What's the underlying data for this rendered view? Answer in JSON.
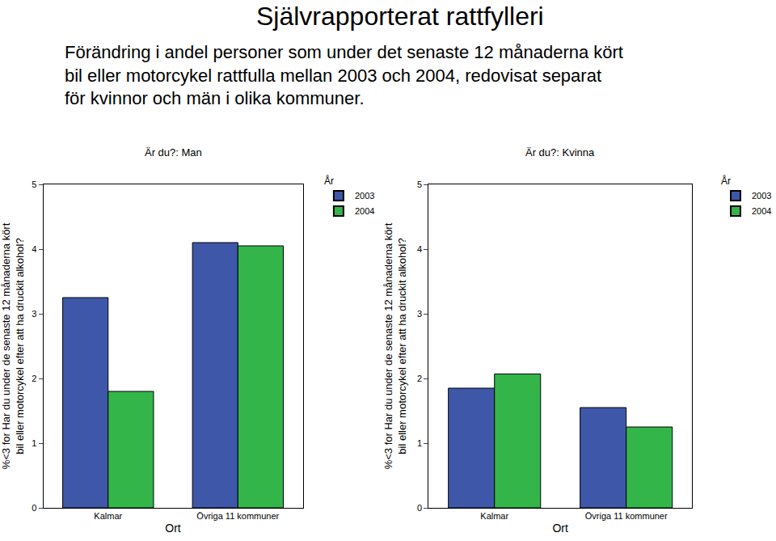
{
  "title": "Självrapporterat rattfylleri",
  "subtitle": "Förändring i andel personer som under det senaste 12 månaderna kört bil eller motorcykel rattfulla mellan 2003 och 2004, redovisat separat för kvinnor och män i olika kommuner.",
  "chart_data": [
    {
      "type": "bar",
      "title": "Är du?: Man",
      "x_label": "Ort",
      "y_label": "%<3 for Har du under de senaste 12 månaderna kört bil eller motorcykel efter att ha druckit alkohol?",
      "categories": [
        "Kalmar",
        "Övriga 11 kommuner"
      ],
      "series": [
        {
          "name": "2003",
          "color": "#3f57a8",
          "values": [
            3.25,
            4.1
          ]
        },
        {
          "name": "2004",
          "color": "#33b54a",
          "values": [
            1.8,
            4.05
          ]
        }
      ],
      "legend_title": "År",
      "legend": "outside right",
      "ylim": [
        0,
        5
      ],
      "yticks": [
        0,
        1,
        2,
        3,
        4,
        5
      ],
      "grid": false
    },
    {
      "type": "bar",
      "title": "Är du?: Kvinna",
      "x_label": "Ort",
      "y_label": "%<3 for Har du under de senaste 12 månaderna kört bil eller motorcykel efter att ha druckit alkohol?",
      "categories": [
        "Kalmar",
        "Övriga 11 kommuner"
      ],
      "series": [
        {
          "name": "2003",
          "color": "#3f57a8",
          "values": [
            1.85,
            1.55
          ]
        },
        {
          "name": "2004",
          "color": "#33b54a",
          "values": [
            2.07,
            1.25
          ]
        }
      ],
      "legend_title": "År",
      "legend": "outside right",
      "ylim": [
        0,
        5
      ],
      "yticks": [
        0,
        1,
        2,
        3,
        4,
        5
      ],
      "grid": false
    }
  ]
}
